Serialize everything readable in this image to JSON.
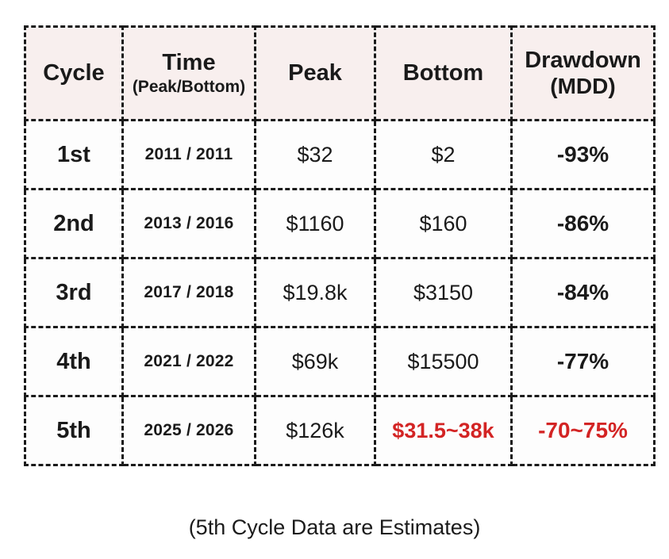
{
  "colors": {
    "page_background": "#ffffff",
    "header_cell_background": "#f8efee",
    "data_cell_background": "#fdfdfd",
    "border_dashed": "#1a1a1a",
    "text": "#1a1a1a",
    "estimate_red": "#d32424"
  },
  "table": {
    "headers": [
      {
        "line1": "Cycle"
      },
      {
        "line1": "Time",
        "line2": "(Peak/Bottom)"
      },
      {
        "line1": "Peak"
      },
      {
        "line1": "Bottom"
      },
      {
        "line1": "Drawdown",
        "line2": "(MDD)"
      }
    ],
    "rows": [
      {
        "cycle": "1st",
        "time": "2011 / 2011",
        "peak": "$32",
        "bottom": "$2",
        "drawdown": "-93%"
      },
      {
        "cycle": "2nd",
        "time": "2013 / 2016",
        "peak": "$1160",
        "bottom": "$160",
        "drawdown": "-86%"
      },
      {
        "cycle": "3rd",
        "time": "2017 / 2018",
        "peak": "$19.8k",
        "bottom": "$3150",
        "drawdown": "-84%"
      },
      {
        "cycle": "4th",
        "time": "2021 / 2022",
        "peak": "$69k",
        "bottom": "$15500",
        "drawdown": "-77%"
      },
      {
        "cycle": "5th",
        "time": "2025 / 2026",
        "peak": "$126k",
        "bottom": "$31.5~38k",
        "drawdown": "-70~75%"
      }
    ]
  },
  "caption": "(5th Cycle Data are Estimates)",
  "chart_data": {
    "type": "table",
    "title": "",
    "columns": [
      "Cycle",
      "Time (Peak/Bottom)",
      "Peak",
      "Bottom",
      "Drawdown (MDD)"
    ],
    "rows": [
      [
        "1st",
        "2011 / 2011",
        "$32",
        "$2",
        "-93%"
      ],
      [
        "2nd",
        "2013 / 2016",
        "$1160",
        "$160",
        "-86%"
      ],
      [
        "3rd",
        "2017 / 2018",
        "$19.8k",
        "$3150",
        "-84%"
      ],
      [
        "4th",
        "2021 / 2022",
        "$69k",
        "$15500",
        "-77%"
      ],
      [
        "5th",
        "2025 / 2026",
        "$126k",
        "$31.5~38k",
        "-70~75%"
      ]
    ],
    "annotations": [
      "(5th Cycle Data are Estimates)"
    ],
    "layout_hints": {
      "header_background": "#f8efee",
      "estimate_cells_red": [
        [
          4,
          3
        ],
        [
          4,
          4
        ]
      ],
      "border_style": "black dashed"
    }
  }
}
